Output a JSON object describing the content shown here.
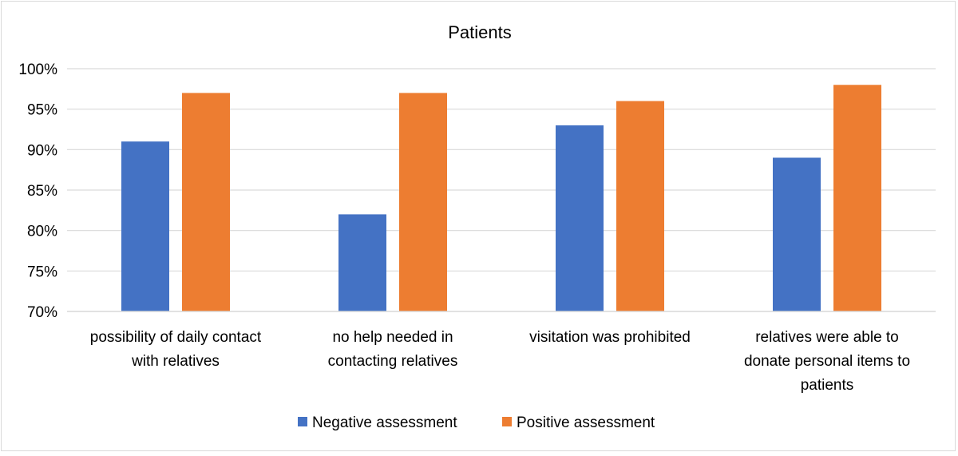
{
  "chart_data": {
    "type": "bar",
    "title": "Patients",
    "xlabel": "",
    "ylabel": "",
    "ylim": [
      70,
      100
    ],
    "ytick_step": 5,
    "ytick_format": "percent",
    "grid": true,
    "legend_position": "bottom",
    "categories": [
      [
        "possibility of daily contact",
        "with relatives"
      ],
      [
        "no help needed in",
        "contacting relatives"
      ],
      [
        "visitation was prohibited"
      ],
      [
        "relatives were able to",
        "donate personal items to",
        "patients"
      ]
    ],
    "series": [
      {
        "name": "Negative assessment",
        "color": "#4472C4",
        "values": [
          91,
          82,
          93,
          89
        ]
      },
      {
        "name": "Positive assessment",
        "color": "#ED7D31",
        "values": [
          97,
          97,
          96,
          98
        ]
      }
    ]
  }
}
